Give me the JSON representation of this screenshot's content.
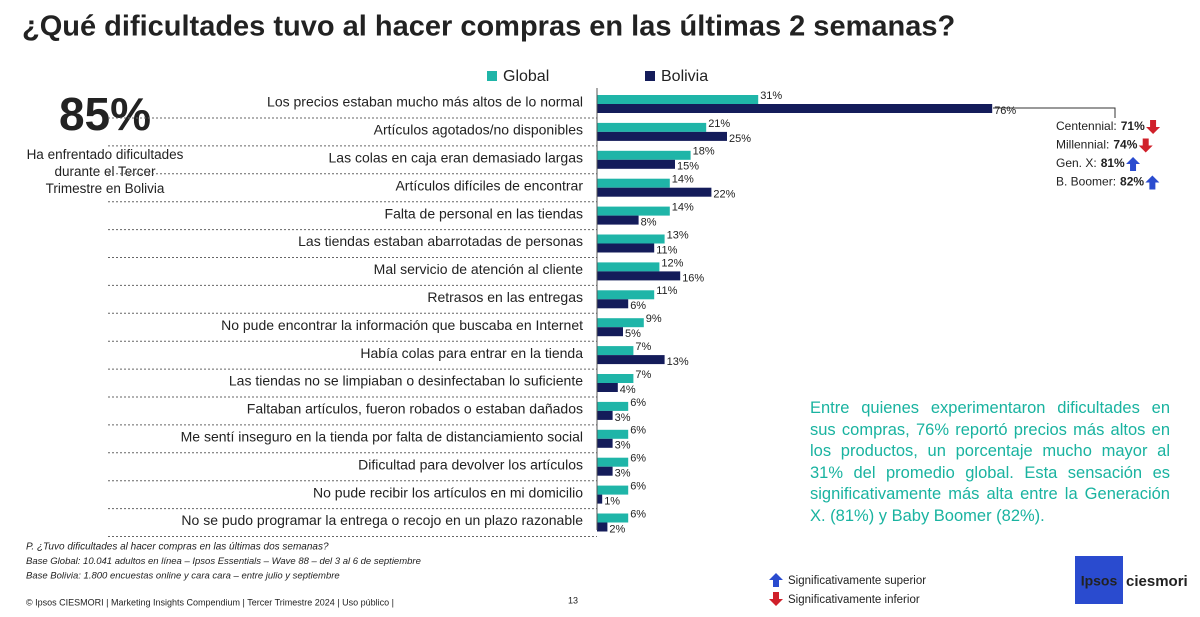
{
  "chart_data": {
    "type": "bar",
    "orientation": "horizontal",
    "title": "¿Qué dificultades tuvo al hacer compras en las últimas 2 semanas?",
    "categories": [
      "Los precios estaban mucho más altos de lo normal",
      "Artículos agotados/no disponibles",
      "Las colas en caja eran demasiado largas",
      "Artículos difíciles de encontrar",
      "Falta de personal en las tiendas",
      "Las tiendas estaban abarrotadas de personas",
      "Mal servicio de atención al cliente",
      "Retrasos en las entregas",
      "No pude encontrar la información que buscaba en Internet",
      "Había colas para entrar en la tienda",
      "Las tiendas no se limpiaban o desinfectaban lo suficiente",
      "Faltaban artículos, fueron robados o estaban dañados",
      "Me sentí inseguro en la tienda por falta de distanciamiento social",
      "Dificultad para devolver los artículos",
      "No pude recibir los artículos en mi domicilio",
      "No se pudo programar la entrega o recojo en un plazo razonable"
    ],
    "series": [
      {
        "name": "Global",
        "color": "#1fb5a8",
        "values": [
          31,
          21,
          18,
          14,
          14,
          13,
          12,
          11,
          9,
          7,
          7,
          6,
          6,
          6,
          6,
          6
        ],
        "value_labels": [
          "31%",
          "21%",
          "18%",
          "14%",
          "14%",
          "13%",
          "12%",
          "11%",
          "9%",
          "7%",
          "7%",
          "6%",
          "6%",
          "6%",
          "6%",
          "6%"
        ]
      },
      {
        "name": "Bolivia",
        "color": "#141c5a",
        "values": [
          76,
          25,
          15,
          22,
          8,
          11,
          16,
          6,
          5,
          13,
          4,
          3,
          3,
          3,
          1,
          2
        ],
        "value_labels": [
          "76%",
          "25%",
          "15%",
          "22%",
          "8%",
          "11%",
          "16%",
          "6%",
          "5%",
          "13%",
          "4%",
          "3%",
          "3%",
          "3%",
          "1%",
          "2%"
        ]
      }
    ]
  },
  "highlight": {
    "value": "85%",
    "text": "Ha enfrentado dificultades durante el Tercer Trimestre en Bolivia"
  },
  "segments": [
    {
      "label": "Centennial:",
      "value": "71%",
      "trend": "down"
    },
    {
      "label": "Millennial:",
      "value": "74%",
      "trend": "down"
    },
    {
      "label": "Gen. X:",
      "value": "81%",
      "trend": "up"
    },
    {
      "label": "B. Boomer:",
      "value": "82%",
      "trend": "up"
    }
  ],
  "insight": "Entre quienes experimentaron dificultades en sus compras, 76% reportó precios más altos en los productos, un porcentaje mucho mayor al 31% del promedio global. Esta sensación es significativamente más alta entre la Generación X. (81%) y Baby Boomer (82%).",
  "notes": [
    "P. ¿Tuvo dificultades al hacer compras en las últimas dos semanas?",
    "Base Global: 10.041 adultos en línea – Ipsos Essentials – Wave 88 – del 3 al 6 de septiembre",
    "Base Bolivia: 1.800 encuestas online y cara cara – entre julio y septiembre"
  ],
  "significance": {
    "up": "Significativamente superior",
    "down": "Significativamente inferior"
  },
  "footer": "© Ipsos CIESMORI | Marketing Insights Compendium | Tercer Trimestre 2024 | Uso público |",
  "page_number": "13",
  "logo": {
    "brand": "Ipsos",
    "partner": "ciesmori"
  }
}
